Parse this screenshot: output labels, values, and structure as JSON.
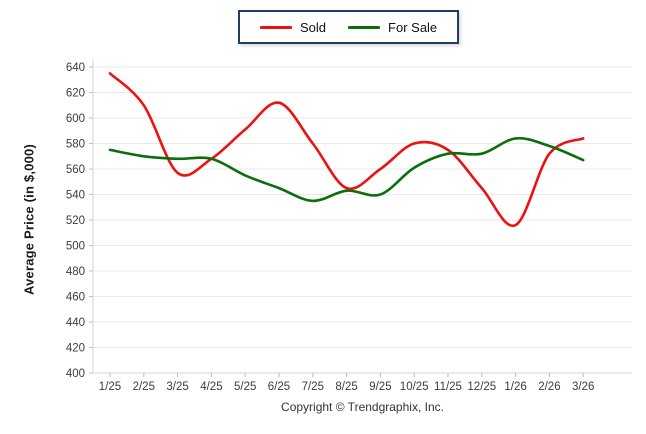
{
  "chart_data": {
    "type": "line",
    "smooth": true,
    "categories": [
      "1/25",
      "2/25",
      "3/25",
      "4/25",
      "5/25",
      "6/25",
      "7/25",
      "8/25",
      "9/25",
      "10/25",
      "11/25",
      "12/25",
      "1/26",
      "2/26",
      "3/26"
    ],
    "series": [
      {
        "name": "Sold",
        "color": "#ee1111",
        "values": [
          635,
          610,
          557,
          568,
          591,
          612,
          580,
          545,
          560,
          580,
          575,
          545,
          516,
          572,
          584
        ]
      },
      {
        "name": "For Sale",
        "color": "#0a6e0a",
        "values": [
          575,
          570,
          568,
          568,
          555,
          545,
          535,
          543,
          540,
          561,
          572,
          572,
          584,
          578,
          567
        ]
      }
    ],
    "title": "",
    "xlabel": "",
    "ylabel": "Average Price (in $,000)",
    "ylim": [
      400,
      640
    ],
    "ytick_step": 20,
    "grid": true,
    "legend_position": "top-center"
  },
  "legend": {
    "items": [
      {
        "label": "Sold",
        "color": "#ee1111"
      },
      {
        "label": "For Sale",
        "color": "#0a6e0a"
      }
    ]
  },
  "footer": {
    "copyright": "Copyright © Trendgraphix, Inc."
  },
  "colors": {
    "gridline": "#e9e9e9",
    "axis_line": "#d6d6d6",
    "tick_mark": "#bcbcbc",
    "tick_label": "#3c3c3c",
    "legend_border": "#1e3f66"
  }
}
